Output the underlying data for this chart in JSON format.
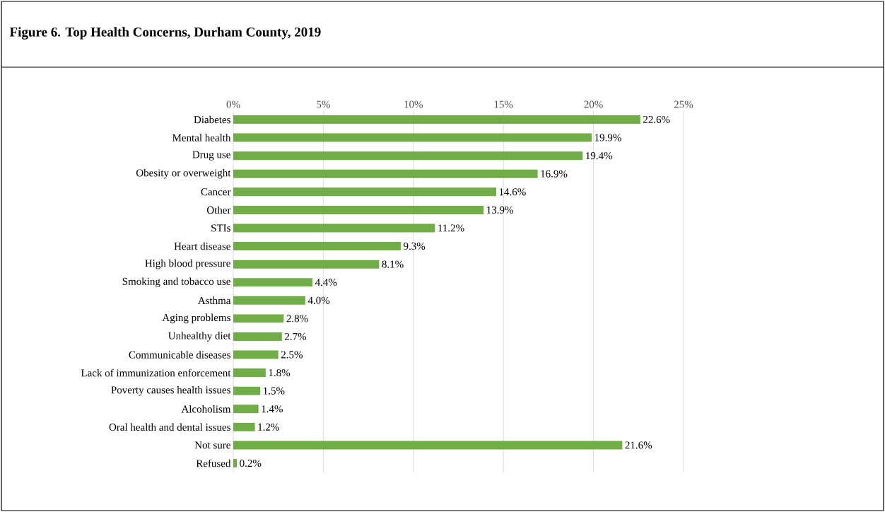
{
  "chart_data": {
    "type": "bar",
    "orientation": "horizontal",
    "title": "Figure 6. Top Health Concerns, Durham County, 2019",
    "categories": [
      "Diabetes",
      "Mental health",
      "Drug use",
      "Obesity or overweight",
      "Cancer",
      "Other",
      "STIs",
      "Heart disease",
      "High blood pressure",
      "Smoking and tobacco use",
      "Asthma",
      "Aging problems",
      "Unhealthy diet",
      "Communicable diseases",
      "Lack of immunization enforcement",
      "Poverty causes health issues",
      "Alcoholism",
      "Oral health and dental issues",
      "Not sure",
      "Refused"
    ],
    "values": [
      22.6,
      19.9,
      19.4,
      16.9,
      14.6,
      13.9,
      11.2,
      9.3,
      8.1,
      4.4,
      4.0,
      2.8,
      2.7,
      2.5,
      1.8,
      1.5,
      1.4,
      1.2,
      21.6,
      0.2
    ],
    "value_labels": [
      "22.6%",
      "19.9%",
      "19.4%",
      "16.9%",
      "14.6%",
      "13.9%",
      "11.2%",
      "9.3%",
      "8.1%",
      "4.4%",
      "4.0%",
      "2.8%",
      "2.7%",
      "2.5%",
      "1.8%",
      "1.5%",
      "1.4%",
      "1.2%",
      "21.6%",
      "0.2%"
    ],
    "color": "#70ad47",
    "xlim": [
      0,
      25
    ],
    "xticks": [
      {
        "value": 0,
        "label": "0%"
      },
      {
        "value": 5,
        "label": "5%"
      },
      {
        "value": 10,
        "label": "10%"
      },
      {
        "value": 15,
        "label": "15%"
      },
      {
        "value": 20,
        "label": "20%"
      },
      {
        "value": 25,
        "label": "25%"
      }
    ],
    "grid": "x"
  }
}
